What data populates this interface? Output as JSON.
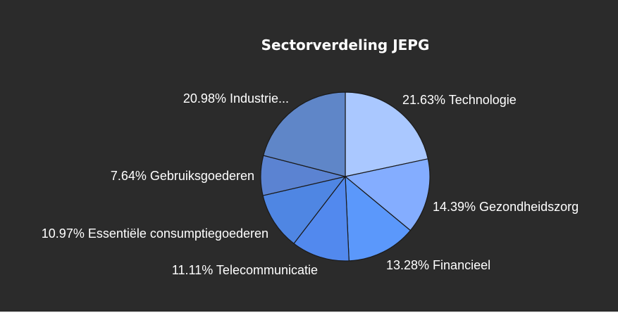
{
  "chart_data": {
    "type": "pie",
    "title": "Sectorverdeling JEPG",
    "slices": [
      {
        "label": "21.63% Technologie",
        "value": 21.63,
        "color": "#aac8ff"
      },
      {
        "label": "14.39% Gezondheidszorg",
        "value": 14.39,
        "color": "#84adff"
      },
      {
        "label": "13.28% Financieel",
        "value": 13.28,
        "color": "#5b98fb"
      },
      {
        "label": "11.11% Telecommunicatie",
        "value": 11.11,
        "color": "#5289ee"
      },
      {
        "label": "10.97% Essentiële consumptiegoederen",
        "value": 10.97,
        "color": "#4f86e3"
      },
      {
        "label": "7.64% Gebruiksgoederen",
        "value": 7.64,
        "color": "#5b83d2"
      },
      {
        "label": "20.98% Industrie...",
        "value": 20.98,
        "color": "#5f86c8"
      }
    ]
  }
}
